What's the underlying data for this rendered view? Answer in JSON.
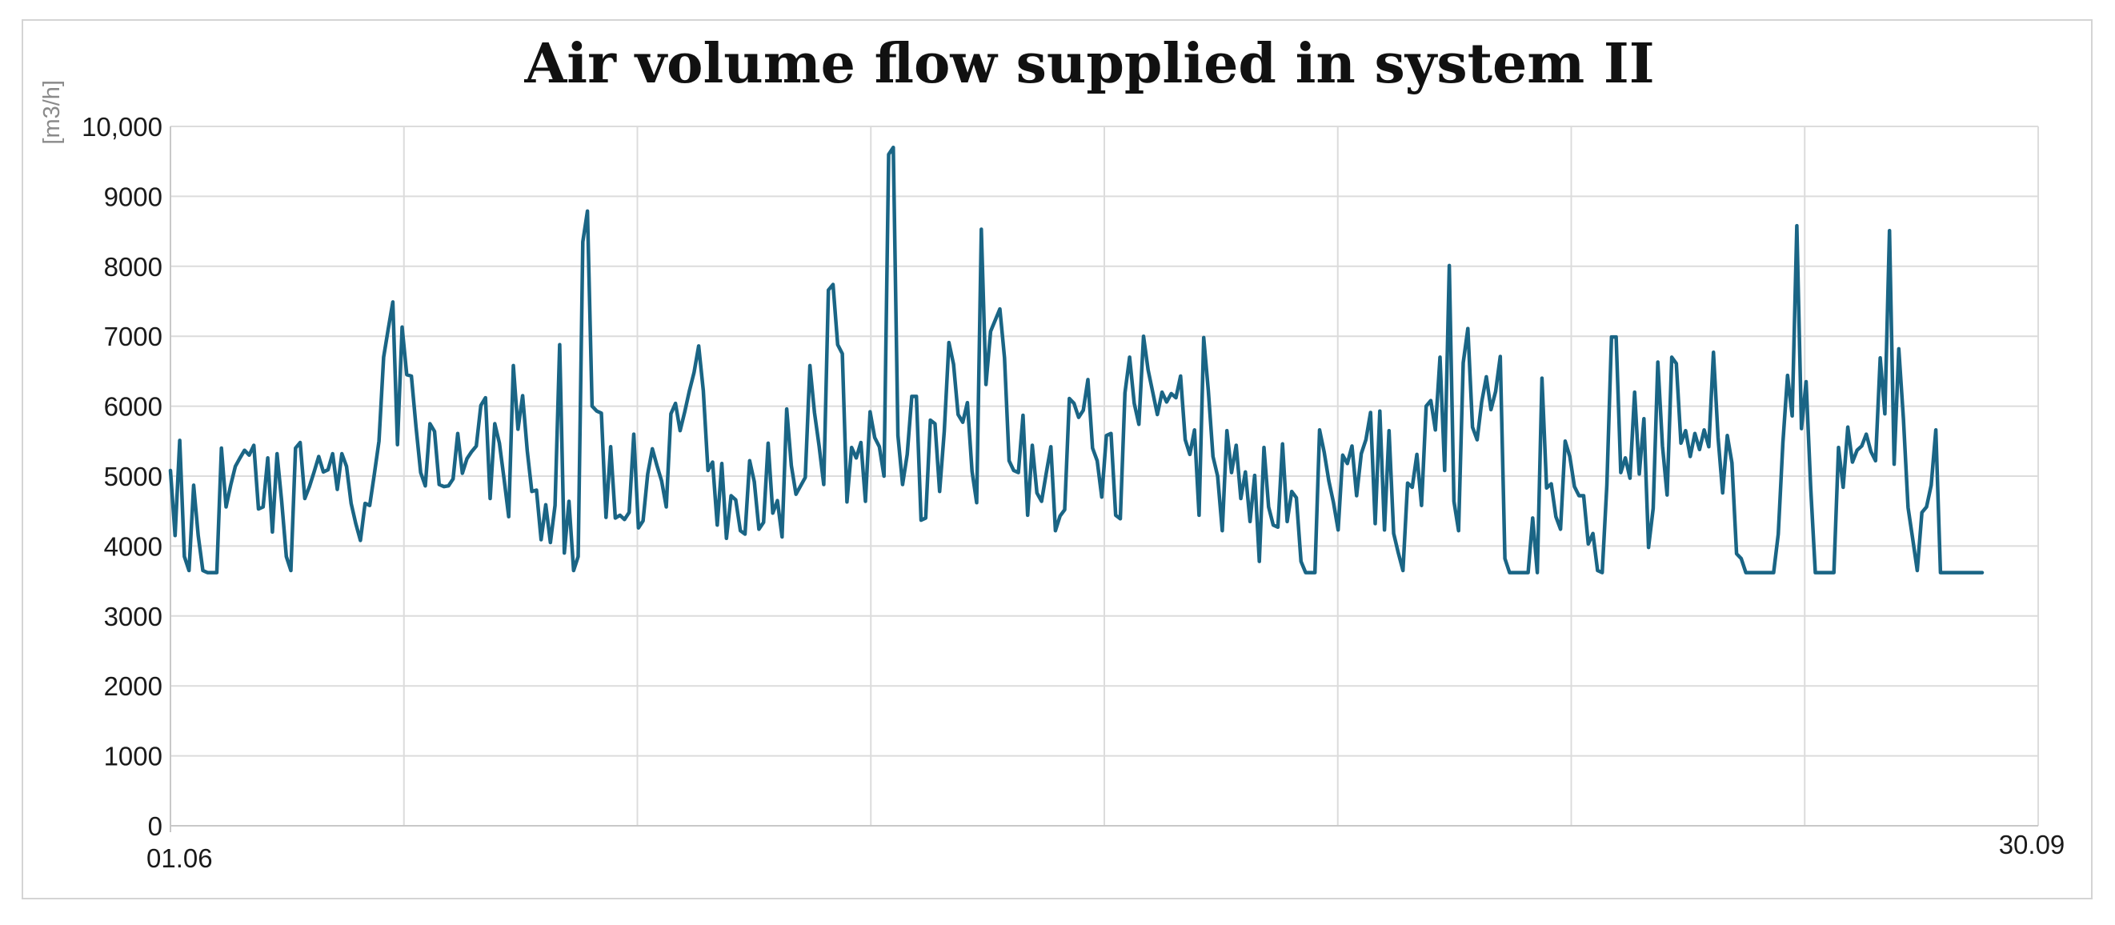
{
  "chart_data": {
    "type": "line",
    "title": "Air volume flow supplied in system II",
    "ylabel": "[m3/h]",
    "xlabel": "",
    "ylim": [
      0,
      10000
    ],
    "yticks": [
      0,
      1000,
      2000,
      3000,
      4000,
      5000,
      6000,
      7000,
      8000,
      9000,
      10000
    ],
    "ytick_labels": [
      "0",
      "1000",
      "2000",
      "3000",
      "4000",
      "5000",
      "6000",
      "7000",
      "8000",
      "9000",
      "10,000"
    ],
    "xtick_labels": [
      "01.06",
      "30.09"
    ],
    "grid": true,
    "line_color": "#1a6585",
    "series": [
      {
        "values": [
          5080,
          4150,
          5510,
          3850,
          3650,
          4870,
          4150,
          3650,
          3620,
          3620,
          3620,
          5400,
          4560,
          4870,
          5140,
          5260,
          5370,
          5300,
          5440,
          4530,
          4560,
          5260,
          4200,
          5320,
          4640,
          3850,
          3650,
          5400,
          5480,
          4680,
          4850,
          5060,
          5280,
          5060,
          5090,
          5320,
          4810,
          5320,
          5140,
          4610,
          4320,
          4080,
          4610,
          4580,
          5030,
          5500,
          6700,
          7100,
          7490,
          5450,
          7130,
          6450,
          6430,
          5700,
          5050,
          4860,
          5750,
          5640,
          4880,
          4850,
          4860,
          4960,
          5610,
          5040,
          5250,
          5350,
          5430,
          6010,
          6120,
          4680,
          5750,
          5470,
          4960,
          4420,
          6580,
          5670,
          6150,
          5360,
          4780,
          4800,
          4090,
          4590,
          4050,
          4580,
          6880,
          3900,
          4640,
          3650,
          3850,
          8350,
          8790,
          6000,
          5930,
          5900,
          4410,
          5420,
          4400,
          4440,
          4380,
          4480,
          5600,
          4260,
          4360,
          5030,
          5390,
          5150,
          4930,
          4560,
          5890,
          6040,
          5650,
          5920,
          6220,
          6480,
          6860,
          6220,
          5080,
          5200,
          4300,
          5180,
          4110,
          4720,
          4660,
          4220,
          4170,
          5220,
          4920,
          4240,
          4340,
          5470,
          4470,
          4650,
          4130,
          5960,
          5150,
          4740,
          4860,
          4980,
          6580,
          5910,
          5430,
          4880,
          7660,
          7740,
          6880,
          6750,
          4630,
          5410,
          5260,
          5480,
          4640,
          5920,
          5550,
          5420,
          5000,
          9600,
          9700,
          5580,
          4880,
          5310,
          6140,
          6140,
          4370,
          4400,
          5800,
          5750,
          4780,
          5640,
          6910,
          6600,
          5880,
          5770,
          6050,
          5070,
          4620,
          8530,
          6310,
          7070,
          7230,
          7390,
          6690,
          5220,
          5080,
          5050,
          5870,
          4440,
          5440,
          4760,
          4640,
          5040,
          5420,
          4220,
          4430,
          4520,
          6110,
          6040,
          5840,
          5940,
          6380,
          5400,
          5220,
          4700,
          5580,
          5610,
          4440,
          4390,
          6190,
          6700,
          6040,
          5740,
          7000,
          6520,
          6200,
          5880,
          6200,
          6060,
          6180,
          6120,
          6430,
          5520,
          5310,
          5660,
          4440,
          6980,
          6220,
          5280,
          5000,
          4220,
          5650,
          5050,
          5440,
          4680,
          5060,
          4350,
          5010,
          3780,
          5410,
          4560,
          4300,
          4270,
          5460,
          4350,
          4780,
          4690,
          3780,
          3620,
          3620,
          3620,
          5660,
          5340,
          4930,
          4620,
          4230,
          5300,
          5180,
          5430,
          4720,
          5320,
          5520,
          5910,
          4320,
          5930,
          4230,
          5650,
          4180,
          3900,
          3650,
          4900,
          4840,
          5310,
          4580,
          6000,
          6080,
          5660,
          6700,
          5080,
          8010,
          4640,
          4220,
          6620,
          7110,
          5700,
          5520,
          6060,
          6420,
          5950,
          6210,
          6710,
          3820,
          3620,
          3620,
          3620,
          3620,
          3620,
          4400,
          3620,
          6400,
          4830,
          4890,
          4420,
          4240,
          5500,
          5280,
          4850,
          4720,
          4720,
          4030,
          4180,
          3650,
          3620,
          4870,
          6990,
          6990,
          5050,
          5260,
          4970,
          6200,
          5030,
          5820,
          3980,
          4540,
          6630,
          5430,
          4730,
          6700,
          6610,
          5470,
          5650,
          5280,
          5610,
          5380,
          5660,
          5420,
          6770,
          5550,
          4760,
          5580,
          5190,
          3890,
          3820,
          3620,
          3620,
          3620,
          3620,
          3620,
          3620,
          3620,
          4170,
          5480,
          6440,
          5860,
          8580,
          5680,
          6350,
          4820,
          3620,
          3620,
          3620,
          3620,
          3620,
          5410,
          4840,
          5700,
          5200,
          5370,
          5430,
          5600,
          5350,
          5220,
          6690,
          5890,
          8510,
          5170,
          6820,
          5820,
          4550,
          4110,
          3650,
          4480,
          4560,
          4870,
          5660,
          3620,
          3620,
          3620,
          3620,
          3620,
          3620,
          3620,
          3620,
          3620,
          3620
        ]
      }
    ]
  }
}
